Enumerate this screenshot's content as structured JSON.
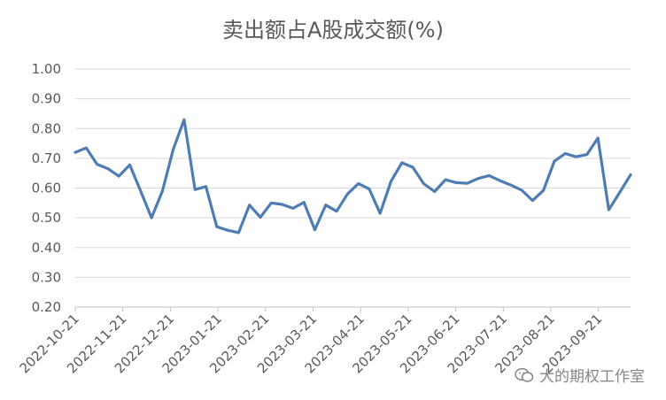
{
  "chart_data": {
    "type": "line",
    "title": "卖出额占A股成交额(%)",
    "xlabel": "",
    "ylabel": "",
    "ylim": [
      0.2,
      1.0
    ],
    "yticks": [
      "0.20",
      "0.30",
      "0.40",
      "0.50",
      "0.60",
      "0.70",
      "0.80",
      "0.90",
      "1.00"
    ],
    "xticks": [
      "2022-10-21",
      "2022-11-21",
      "2022-12-21",
      "2023-01-21",
      "2023-02-21",
      "2023-03-21",
      "2023-04-21",
      "2023-05-21",
      "2023-06-21",
      "2023-07-21",
      "2023-08-21",
      "2023-09-21"
    ],
    "grid": true,
    "series_color": "#4F7DB3",
    "series": [
      {
        "values": [
          0.72,
          0.735,
          0.68,
          0.665,
          0.64,
          0.678,
          0.59,
          0.5,
          0.59,
          0.73,
          0.83,
          0.595,
          0.605,
          0.47,
          0.458,
          0.45,
          0.543,
          0.502,
          0.55,
          0.545,
          0.532,
          0.552,
          0.46,
          0.543,
          0.522,
          0.58,
          0.615,
          0.597,
          0.515,
          0.623,
          0.685,
          0.67,
          0.615,
          0.588,
          0.628,
          0.618,
          0.616,
          0.632,
          0.642,
          0.625,
          0.61,
          0.593,
          0.558,
          0.592,
          0.69,
          0.716,
          0.705,
          0.713,
          0.768,
          0.527,
          0.585,
          0.645
        ]
      }
    ]
  },
  "watermark": {
    "icon": "wechat-icon",
    "text": "大的期权工作室"
  }
}
